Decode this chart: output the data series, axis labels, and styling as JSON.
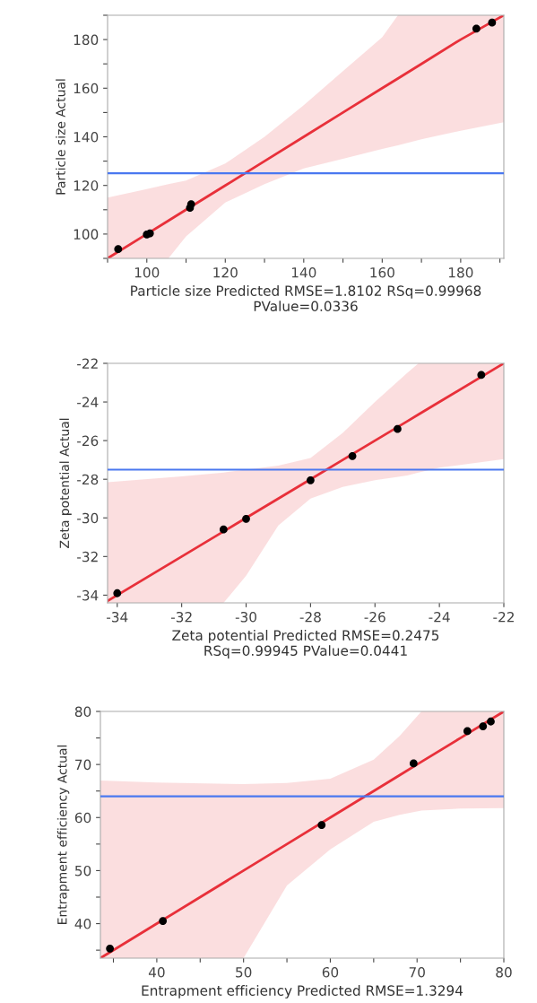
{
  "chart_data": [
    {
      "type": "scatter",
      "xlabel": "Particle size Predicted RMSE=1.8102 RSq=0.99968\nPValue=0.0336",
      "ylabel": "Particle size Actual",
      "grid": false,
      "xlim": [
        90,
        191
      ],
      "ylim": [
        90,
        190
      ],
      "xticks": [
        {
          "value": 90,
          "label": null
        },
        100,
        {
          "value": 110,
          "label": null
        },
        120,
        {
          "value": 130,
          "label": null
        },
        140,
        {
          "value": 150,
          "label": null
        },
        160,
        {
          "value": 170,
          "label": null
        },
        180,
        {
          "value": 190,
          "label": null
        }
      ],
      "yticks": [
        {
          "value": 90,
          "label": null
        },
        100,
        {
          "value": 110,
          "label": null
        },
        120,
        {
          "value": 130,
          "label": null
        },
        140,
        {
          "value": 150,
          "label": null
        },
        160,
        {
          "value": 170,
          "label": null
        },
        180,
        {
          "value": 190,
          "label": null
        }
      ],
      "ref_lines": [
        {
          "axis": "y",
          "value": 125,
          "color": "#4a78f0"
        }
      ],
      "series": [
        {
          "type": "line",
          "color": "#e8303a",
          "x": [
            90,
            100,
            105.5,
            110,
            120,
            130,
            140,
            150,
            160,
            164,
            170,
            180,
            191
          ],
          "values": [
            90,
            100,
            105.5,
            110,
            120,
            130,
            140,
            150,
            160,
            164,
            170,
            180,
            190
          ],
          "upper": [
            115,
            118.5,
            120.5,
            122,
            129,
            140,
            153,
            167,
            181,
            190,
            190,
            190,
            190
          ],
          "lower": [
            90,
            90,
            90,
            99,
            113,
            120.5,
            127,
            131,
            135,
            136.5,
            139,
            142.5,
            146
          ]
        },
        {
          "marker": "circle",
          "color": "#000000",
          "x": [
            92.7,
            100,
            100.8,
            111,
            111.3,
            184,
            188
          ],
          "values": [
            93.8,
            99.8,
            100.3,
            110.8,
            112.3,
            184.5,
            187
          ]
        }
      ]
    },
    {
      "type": "scatter",
      "xlabel": "Zeta potential Predicted RMSE=0.2475\nRSq=0.99945 PValue=0.0441",
      "ylabel": "Zeta potential Actual",
      "grid": false,
      "xlim": [
        -34.3,
        -22
      ],
      "ylim": [
        -34.4,
        -22
      ],
      "xticks": [
        -34,
        -32,
        -30,
        -28,
        -26,
        -24,
        -22
      ],
      "yticks": [
        -34,
        -32,
        -30,
        -28,
        -26,
        -24,
        -22
      ],
      "ref_lines": [
        {
          "axis": "y",
          "value": -27.5,
          "color": "#4a78f0"
        }
      ],
      "series": [
        {
          "type": "line",
          "color": "#e8303a",
          "x": [
            -34.3,
            -32,
            -30.7,
            -30,
            -29,
            -28,
            -27,
            -26,
            -25,
            -24.65,
            -24,
            -22
          ],
          "values": [
            -34.3,
            -32,
            -30.7,
            -30,
            -29,
            -28,
            -27,
            -26,
            -25,
            -24.65,
            -24,
            -22
          ],
          "upper": [
            -28.15,
            -27.85,
            -27.65,
            -27.5,
            -27.3,
            -26.9,
            -25.6,
            -24.0,
            -22.5,
            -22,
            -22,
            -22
          ],
          "lower": [
            -34.4,
            -34.4,
            -34.4,
            -33.0,
            -30.4,
            -29.0,
            -28.4,
            -28.05,
            -27.8,
            -27.65,
            -27.4,
            -26.96
          ]
        },
        {
          "marker": "circle",
          "color": "#000000",
          "x": [
            -34,
            -30.7,
            -30,
            -28,
            -26.7,
            -25.3,
            -22.7
          ],
          "values": [
            -33.9,
            -30.6,
            -30.05,
            -28.05,
            -26.8,
            -25.4,
            -22.6
          ]
        }
      ]
    },
    {
      "type": "scatter",
      "xlabel": "Entrapment efficiency Predicted RMSE=1.3294",
      "ylabel": "Entrapment efficiency Actual",
      "grid": false,
      "xlim": [
        33.5,
        80
      ],
      "ylim": [
        33.5,
        80
      ],
      "xticks": [
        {
          "value": 35,
          "label": null
        },
        40,
        {
          "value": 45,
          "label": null
        },
        50,
        {
          "value": 55,
          "label": null
        },
        60,
        {
          "value": 65,
          "label": null
        },
        70,
        {
          "value": 75,
          "label": null
        },
        80
      ],
      "yticks": [
        {
          "value": 35,
          "label": null
        },
        40,
        {
          "value": 45,
          "label": null
        },
        50,
        {
          "value": 55,
          "label": null
        },
        60,
        {
          "value": 65,
          "label": null
        },
        70,
        {
          "value": 75,
          "label": null
        },
        80
      ],
      "ref_lines": [
        {
          "axis": "y",
          "value": 64,
          "color": "#4a78f0"
        }
      ],
      "series": [
        {
          "type": "line",
          "color": "#e8303a",
          "x": [
            33.5,
            40,
            50,
            55,
            60,
            65,
            68,
            70.5,
            75,
            80
          ],
          "values": [
            33.5,
            40,
            50,
            55,
            60,
            65,
            68,
            70.5,
            75,
            80
          ],
          "upper": [
            67,
            66.6,
            66.3,
            66.5,
            67.3,
            70.9,
            75.4,
            80,
            80,
            80
          ],
          "lower": [
            33.5,
            33.5,
            33.5,
            47.2,
            54,
            59.2,
            60.5,
            61.3,
            61.7,
            61.8
          ]
        },
        {
          "marker": "circle",
          "color": "#000000",
          "x": [
            34.6,
            40.7,
            59,
            69.6,
            75.8,
            77.6,
            78.5
          ],
          "values": [
            35.3,
            40.5,
            58.6,
            70.2,
            76.3,
            77.2,
            78.1
          ]
        }
      ]
    }
  ]
}
